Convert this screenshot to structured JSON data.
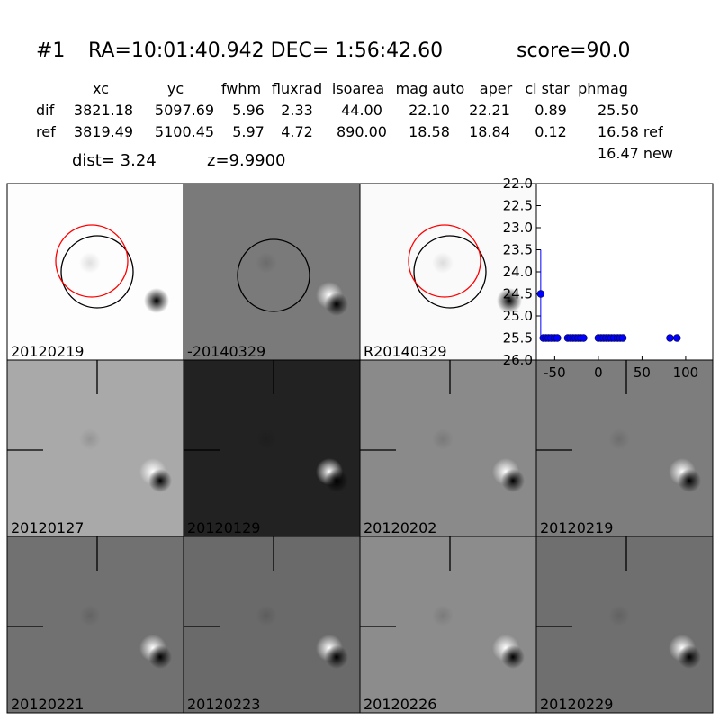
{
  "header": {
    "id": "#1",
    "coords": "RA=10:01:40.942 DEC= 1:56:42.60",
    "score": "score=90.0"
  },
  "table": {
    "columns": [
      "xc",
      "yc",
      "fwhm",
      "fluxrad",
      "isoarea",
      "mag auto",
      "aper",
      "cl star",
      "phmag"
    ],
    "rows": [
      [
        "dif",
        "3821.18",
        "5097.69",
        "5.96",
        "2.33",
        "44.00",
        "22.10",
        "22.21",
        "0.89",
        "25.50"
      ],
      [
        "ref",
        "3819.49",
        "5100.45",
        "5.97",
        "4.72",
        "890.00",
        "18.58",
        "18.84",
        "0.12",
        "16.58 ref"
      ]
    ],
    "extra": "16.47 new"
  },
  "dist": "dist=  3.24",
  "z": "z=9.9900",
  "panels": [
    {
      "label": "20120219"
    },
    {
      "label": "-20140329"
    },
    {
      "label": "R20140329"
    },
    {
      "label": "20120127"
    },
    {
      "label": "20120129"
    },
    {
      "label": "20120202"
    },
    {
      "label": "20120219",
      "label_color": "#ff0000"
    },
    {
      "label": "20120221"
    },
    {
      "label": "20120223"
    },
    {
      "label": "20120226"
    },
    {
      "label": "20120229"
    }
  ],
  "chart_data": {
    "type": "scatter",
    "color": "#0000ff",
    "x": [
      -66,
      -63,
      -60,
      -57,
      -54,
      -50,
      -47,
      -35,
      -32,
      -29,
      -26,
      -23,
      -20,
      -17,
      0,
      3,
      6,
      9,
      12,
      15,
      18,
      22,
      25,
      28,
      82,
      90
    ],
    "values": [
      24.5,
      25.5,
      25.5,
      25.5,
      25.5,
      25.5,
      25.5,
      25.5,
      25.5,
      25.5,
      25.5,
      25.5,
      25.5,
      25.5,
      25.5,
      25.5,
      25.5,
      25.5,
      25.5,
      25.5,
      25.5,
      25.5,
      25.5,
      25.5,
      25.5,
      25.5
    ],
    "errors": [
      1.0,
      null,
      null,
      null,
      null,
      null,
      null,
      null,
      null,
      null,
      null,
      null,
      null,
      null,
      null,
      null,
      null,
      null,
      null,
      null,
      null,
      null,
      null,
      null,
      null,
      null
    ],
    "xlim": [
      -71,
      131
    ],
    "xticks": [
      -50,
      0,
      50,
      100
    ],
    "ylim": [
      26.0,
      22.0
    ],
    "y_inverted": true,
    "yticks": [
      {
        "value": 22.0,
        "label": "22.0"
      },
      {
        "value": 22.5,
        "label": "22.5"
      },
      {
        "value": 23.0,
        "label": "23.0"
      },
      {
        "value": 23.5,
        "label": "23.5"
      },
      {
        "value": 24.0,
        "label": "24.0"
      },
      {
        "value": 24.5,
        "label": "24.5"
      },
      {
        "value": 25.0,
        "label": "25.0"
      },
      {
        "value": 25.5,
        "label": "25.5"
      },
      {
        "value": 26.0,
        "label": "26.0"
      }
    ]
  }
}
